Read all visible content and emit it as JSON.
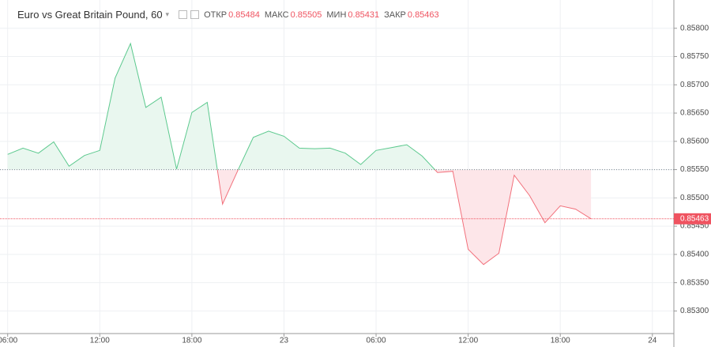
{
  "chart_data": {
    "type": "baseline_line",
    "title": "Euro vs Great Britain Pound, 60",
    "ohlc": [
      {
        "name": "ОТКР",
        "value": 0.85484,
        "label": "0.85484"
      },
      {
        "name": "МАКС",
        "value": 0.85505,
        "label": "0.85505"
      },
      {
        "name": "МИН",
        "value": 0.85431,
        "label": "0.85431"
      },
      {
        "name": "ЗАКР",
        "value": 0.85463,
        "label": "0.85463"
      }
    ],
    "x": [
      0,
      1,
      2,
      3,
      4,
      5,
      6,
      7,
      8,
      9,
      10,
      11,
      12,
      13,
      14,
      15,
      16,
      17,
      18,
      19,
      20,
      21,
      22,
      23,
      24,
      25,
      26,
      27,
      28,
      29,
      30,
      31,
      32,
      33,
      34,
      35,
      36,
      37,
      38
    ],
    "values": [
      0.85577,
      0.85588,
      0.85579,
      0.85599,
      0.85556,
      0.85575,
      0.85584,
      0.85712,
      0.85773,
      0.8566,
      0.85678,
      0.85551,
      0.85651,
      0.85669,
      0.85489,
      0.85549,
      0.85607,
      0.85618,
      0.85609,
      0.85588,
      0.85587,
      0.85588,
      0.85579,
      0.85559,
      0.85584,
      0.85589,
      0.85594,
      0.85574,
      0.85545,
      0.85547,
      0.85409,
      0.85382,
      0.85402,
      0.8554,
      0.85504,
      0.85456,
      0.85486,
      0.8548,
      0.85463
    ],
    "baseline": 0.8555,
    "up_color": "#5cc98e",
    "up_fill": "#e9f7ef",
    "down_color": "#f2707b",
    "down_fill": "#fde6e9",
    "price_line": {
      "value": 0.85463,
      "label": "0.85463",
      "color": "#ef5360"
    },
    "xlim": [
      -0.5,
      43.4
    ],
    "xticks": [
      {
        "value": 0,
        "label": "06:00"
      },
      {
        "value": 6,
        "label": "12:00"
      },
      {
        "value": 12,
        "label": "18:00"
      },
      {
        "value": 18,
        "label": "23"
      },
      {
        "value": 24,
        "label": "06:00"
      },
      {
        "value": 30,
        "label": "12:00"
      },
      {
        "value": 36,
        "label": "18:00"
      },
      {
        "value": 42,
        "label": "24"
      }
    ],
    "ylim": [
      0.8526,
      0.8585
    ],
    "yticks": [
      {
        "value": 0.853,
        "label": "0.85300"
      },
      {
        "value": 0.8535,
        "label": "0.85350"
      },
      {
        "value": 0.854,
        "label": "0.85400"
      },
      {
        "value": 0.8545,
        "label": "0.85450"
      },
      {
        "value": 0.855,
        "label": "0.85500"
      },
      {
        "value": 0.8555,
        "label": "0.85550"
      },
      {
        "value": 0.856,
        "label": "0.85600"
      },
      {
        "value": 0.8565,
        "label": "0.85650"
      },
      {
        "value": 0.857,
        "label": "0.85700"
      },
      {
        "value": 0.8575,
        "label": "0.85750"
      },
      {
        "value": 0.858,
        "label": "0.85800"
      }
    ],
    "grid": true
  }
}
